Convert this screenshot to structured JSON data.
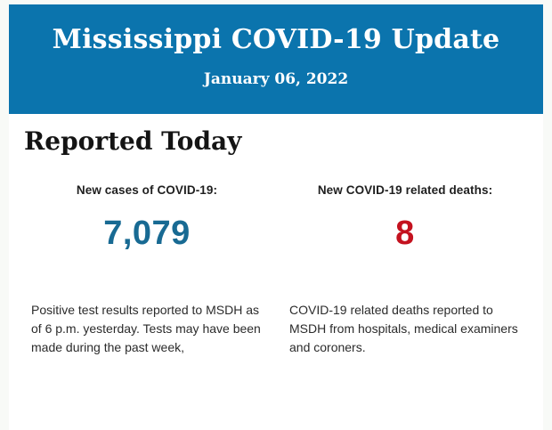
{
  "colors": {
    "banner_bg": "#0b74ad",
    "banner_text": "#ffffff",
    "cases_value": "#186a93",
    "deaths_value": "#c4121f",
    "heading_text": "#141414",
    "label_text": "#1f1f1f",
    "body_text": "#2b2b2b",
    "page_bg": "#f8faf7",
    "content_bg": "#ffffff"
  },
  "banner": {
    "title": "Mississippi COVID-19 Update",
    "date": "January 06, 2022"
  },
  "report": {
    "heading": "Reported Today",
    "cases": {
      "label": "New cases of COVID-19:",
      "value": "7,079",
      "description": "Positive test results reported to MSDH as of 6 p.m. yesterday. Tests may have been made during the past week,"
    },
    "deaths": {
      "label": "New COVID-19 related deaths:",
      "value": "8",
      "description": "COVID-19 related deaths reported to MSDH from hospitals, medical examiners and coroners."
    }
  }
}
